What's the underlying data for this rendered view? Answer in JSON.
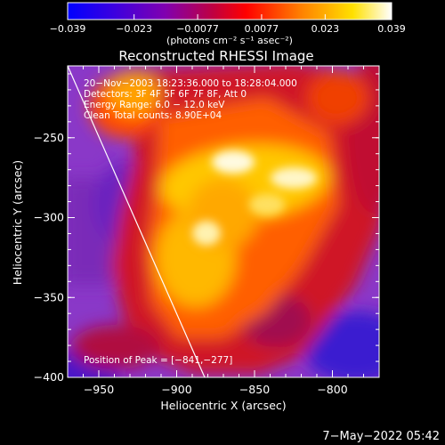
{
  "colorbar": {
    "ticks": [
      "−0.039",
      "−0.023",
      "−0.0077",
      "0.0077",
      "0.023",
      "0.039"
    ],
    "unit_label": "(photons cm⁻² s⁻¹ asec⁻²)",
    "range": [
      -0.039,
      0.039
    ],
    "stops": [
      "#0000ff",
      "#3a00e0",
      "#8000b0",
      "#c00040",
      "#ff0000",
      "#ff8000",
      "#ffe000",
      "#ffffff"
    ]
  },
  "chart_data": {
    "type": "heatmap",
    "title": "Reconstructed RHESSI Image",
    "xlabel": "Heliocentric X (arcsec)",
    "ylabel": "Heliocentric Y (arcsec)",
    "xlim": [
      -970,
      -770
    ],
    "ylim": [
      -400,
      -205
    ],
    "x_ticks": [
      -950,
      -900,
      -850,
      -800
    ],
    "y_ticks": [
      -250,
      -300,
      -350,
      -400
    ],
    "x_tick_labels": [
      "−950",
      "−900",
      "−850",
      "−800"
    ],
    "y_tick_labels": [
      "−250",
      "−300",
      "−350",
      "−400"
    ],
    "peak": {
      "x": -841,
      "y": -277
    },
    "limb_line": [
      [
        -970,
        -205
      ],
      [
        -882,
        -400
      ]
    ],
    "annotations": [
      "20−Nov−2003 18:23:36.000 to 18:28:04.000",
      "Detectors: 3F 4F 5F 6F 7F 8F, Att 0",
      "Energy Range: 6.0 − 12.0 keV",
      "Clean    Total counts: 8.90E+04"
    ],
    "peak_label": "Position of Peak = [−841,−277]"
  },
  "timestamp": "7−May−2022 05:42"
}
